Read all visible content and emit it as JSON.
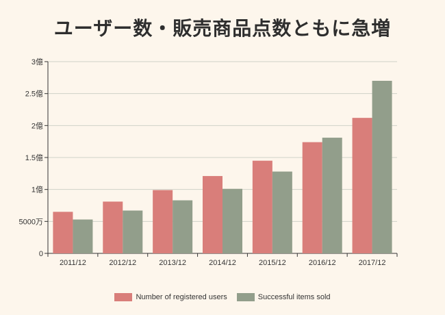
{
  "colors": {
    "registered": "#d97e7a",
    "sold": "#929e8b",
    "background": "#fdf6ec",
    "grid": "#cfd2c8"
  },
  "chart_data": {
    "type": "bar",
    "title": "ユーザー数・販売商品点数ともに急増",
    "xlabel": "",
    "ylabel": "",
    "categories": [
      "2011/12",
      "2012/12",
      "2013/12",
      "2014/12",
      "2015/12",
      "2016/12",
      "2017/12"
    ],
    "series": [
      {
        "name": "Number of registered users",
        "values": [
          65000000,
          81000000,
          99000000,
          121000000,
          145000000,
          174000000,
          212000000
        ]
      },
      {
        "name": "Successful items sold",
        "values": [
          53000000,
          67000000,
          83000000,
          101000000,
          128000000,
          181000000,
          270000000
        ]
      }
    ],
    "ylim": [
      0,
      300000000
    ],
    "yticks": [
      {
        "value": 0,
        "label": "0"
      },
      {
        "value": 50000000,
        "label": "5000万"
      },
      {
        "value": 100000000,
        "label": "1億"
      },
      {
        "value": 150000000,
        "label": "1.5億"
      },
      {
        "value": 200000000,
        "label": "2億"
      },
      {
        "value": 250000000,
        "label": "2.5億"
      },
      {
        "value": 300000000,
        "label": "3億"
      }
    ],
    "grid": true,
    "legend": "bottom"
  }
}
